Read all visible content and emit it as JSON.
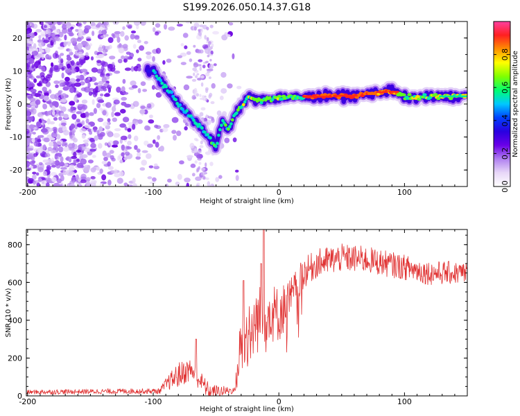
{
  "chart_data": [
    {
      "type": "heatmap",
      "title": "S199.2026.050.14.37.G18",
      "xlabel": "Height of straight line (km)",
      "ylabel": "Frequency (Hz)",
      "xlim": [
        -201,
        150
      ],
      "ylim": [
        -25,
        25
      ],
      "xticks": [
        -200,
        -100,
        0,
        100
      ],
      "yticks": [
        -20,
        -10,
        0,
        10,
        20
      ],
      "colorbar": {
        "label": "Normalized spectral amplitude",
        "range": [
          0,
          1
        ],
        "ticks": [
          "0.0",
          "0.2",
          "0.4",
          "0.6",
          "0.8"
        ],
        "colors": [
          "#ffffff",
          "#e8d8f8",
          "#b080f0",
          "#6a00e8",
          "#2a00e0",
          "#0040ff",
          "#00c8ff",
          "#00ff70",
          "#80ff00",
          "#ffff00",
          "#ff9000",
          "#ff2020",
          "#ff40a0"
        ]
      },
      "trace": {
        "description_points": [
          {
            "height_km": -100,
            "freq_hz": 10
          },
          {
            "height_km": -90,
            "freq_hz": 5
          },
          {
            "height_km": -80,
            "freq_hz": 0
          },
          {
            "height_km": -70,
            "freq_hz": -4
          },
          {
            "height_km": -60,
            "freq_hz": -8
          },
          {
            "height_km": -50,
            "freq_hz": -13
          },
          {
            "height_km": -45,
            "freq_hz": -5
          },
          {
            "height_km": -40,
            "freq_hz": -8
          },
          {
            "height_km": -35,
            "freq_hz": -3
          },
          {
            "height_km": -25,
            "freq_hz": 2
          },
          {
            "height_km": -15,
            "freq_hz": 1
          },
          {
            "height_km": 0,
            "freq_hz": 2
          },
          {
            "height_km": 20,
            "freq_hz": 2
          },
          {
            "height_km": 40,
            "freq_hz": 2.5
          },
          {
            "height_km": 60,
            "freq_hz": 2.5
          },
          {
            "height_km": 80,
            "freq_hz": 3.5
          },
          {
            "height_km": 90,
            "freq_hz": 4
          },
          {
            "height_km": 100,
            "freq_hz": 2
          },
          {
            "height_km": 120,
            "freq_hz": 2
          },
          {
            "height_km": 150,
            "freq_hz": 2.5
          }
        ]
      }
    },
    {
      "type": "line",
      "xlabel": "Height of straight line (km)",
      "ylabel": "SNR (10 * v/v)",
      "xlim": [
        -201,
        150
      ],
      "ylim": [
        0,
        880
      ],
      "xticks": [
        -200,
        -100,
        0,
        100
      ],
      "yticks": [
        0,
        200,
        400,
        600,
        800
      ],
      "series": [
        {
          "name": "SNR",
          "color": "#e03030",
          "envelope": [
            {
              "x": -200,
              "y": 20
            },
            {
              "x": -120,
              "y": 25
            },
            {
              "x": -95,
              "y": 25
            },
            {
              "x": -90,
              "y": 60
            },
            {
              "x": -80,
              "y": 110
            },
            {
              "x": -70,
              "y": 140
            },
            {
              "x": -60,
              "y": 60
            },
            {
              "x": -55,
              "y": 20
            },
            {
              "x": -35,
              "y": 30
            },
            {
              "x": -30,
              "y": 280
            },
            {
              "x": -20,
              "y": 380
            },
            {
              "x": -10,
              "y": 450
            },
            {
              "x": 0,
              "y": 430
            },
            {
              "x": 10,
              "y": 520
            },
            {
              "x": 20,
              "y": 650
            },
            {
              "x": 30,
              "y": 700
            },
            {
              "x": 50,
              "y": 730
            },
            {
              "x": 70,
              "y": 720
            },
            {
              "x": 100,
              "y": 680
            },
            {
              "x": 120,
              "y": 650
            },
            {
              "x": 150,
              "y": 650
            }
          ],
          "noise_amplitude": [
            {
              "x": -200,
              "a": 12
            },
            {
              "x": -95,
              "a": 15
            },
            {
              "x": -80,
              "a": 70
            },
            {
              "x": -60,
              "a": 50
            },
            {
              "x": -35,
              "a": 15
            },
            {
              "x": -30,
              "a": 200
            },
            {
              "x": 0,
              "a": 150
            },
            {
              "x": 20,
              "a": 80
            },
            {
              "x": 150,
              "a": 60
            }
          ],
          "peaks": [
            {
              "x": -66,
              "y": 300
            },
            {
              "x": -28,
              "y": 610
            },
            {
              "x": -12,
              "y": 880
            },
            {
              "x": -14,
              "y": 700
            }
          ]
        }
      ]
    }
  ]
}
